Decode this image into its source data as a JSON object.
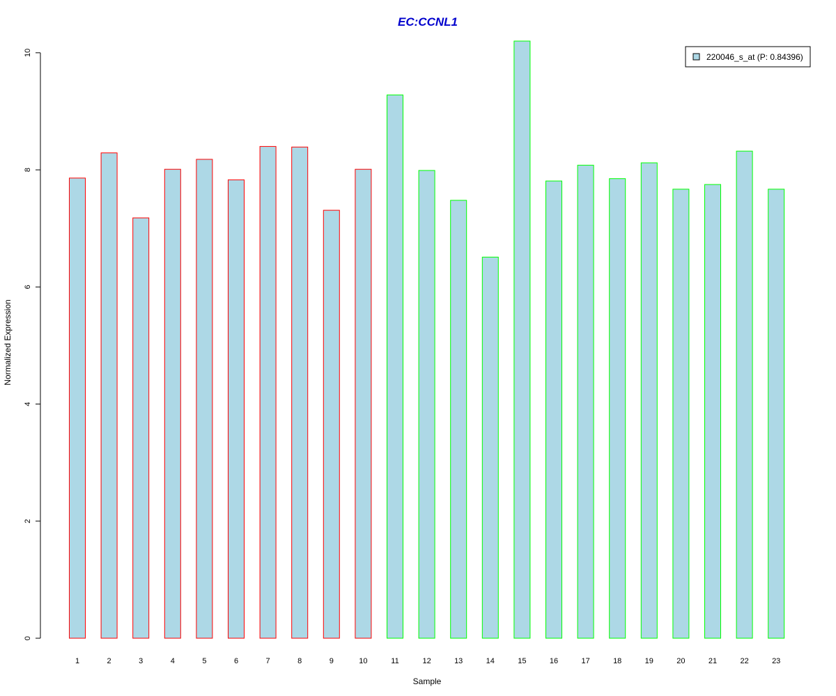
{
  "chart_data": {
    "type": "bar",
    "title": "EC:CCNL1",
    "xlabel": "Sample",
    "ylabel": "Normalized Expression",
    "ylim": [
      0,
      10.2
    ],
    "yticks": [
      0,
      2,
      4,
      6,
      8,
      10
    ],
    "categories": [
      "1",
      "2",
      "3",
      "4",
      "5",
      "6",
      "7",
      "8",
      "9",
      "10",
      "11",
      "12",
      "13",
      "14",
      "15",
      "16",
      "17",
      "18",
      "19",
      "20",
      "21",
      "22",
      "23"
    ],
    "series": [
      {
        "name": "220046_s_at (P: 0.84396)",
        "values": [
          7.86,
          8.29,
          7.18,
          8.01,
          8.18,
          7.83,
          8.4,
          8.39,
          7.31,
          8.01,
          9.28,
          7.99,
          7.48,
          6.51,
          10.2,
          7.81,
          8.08,
          7.85,
          8.12,
          7.67,
          7.75,
          8.32,
          7.67
        ],
        "groups": [
          "red",
          "red",
          "red",
          "red",
          "red",
          "red",
          "red",
          "red",
          "red",
          "red",
          "green",
          "green",
          "green",
          "green",
          "green",
          "green",
          "green",
          "green",
          "green",
          "green",
          "green",
          "green",
          "green"
        ]
      }
    ],
    "legend_position": "top-right",
    "grid": false,
    "colors": {
      "bar_fill": "#add8e6",
      "group_red": "#ff0000",
      "group_green": "#00ff00",
      "title": "#0000cd"
    }
  }
}
